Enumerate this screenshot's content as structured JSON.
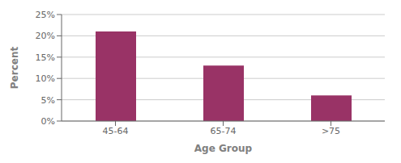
{
  "chart_data": {
    "type": "bar",
    "categories": [
      "45-64",
      "65-74",
      ">75"
    ],
    "values": [
      21,
      13,
      6
    ],
    "color": "#993366",
    "xlabel": "Age Group",
    "ylabel": "Percent",
    "ylim": [
      0,
      25
    ],
    "yticks": [
      {
        "value": 0,
        "label": "0%"
      },
      {
        "value": 5,
        "label": "5%"
      },
      {
        "value": 10,
        "label": "10%"
      },
      {
        "value": 15,
        "label": "15%"
      },
      {
        "value": 20,
        "label": "20%"
      },
      {
        "value": 25,
        "label": "25%"
      }
    ],
    "grid": true
  }
}
